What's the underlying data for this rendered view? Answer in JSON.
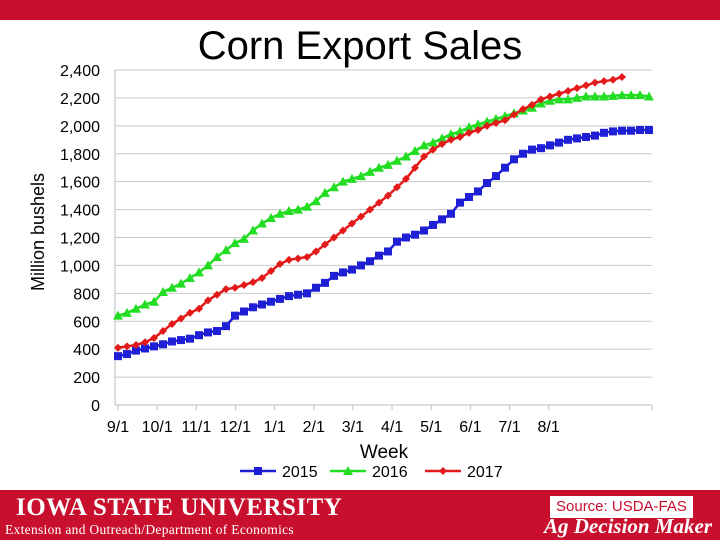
{
  "slide": {
    "title": "Corn Export Sales",
    "footer": {
      "university": "IOWA STATE UNIVERSITY",
      "department": "Extension and Outreach/Department of Economics",
      "source": "Source: USDA-FAS",
      "brand": "Ag Decision Maker"
    }
  },
  "colors": {
    "series_2015": "#1f1fd6",
    "series_2016": "#22dd22",
    "series_2017": "#e31a1a",
    "footer": "#c8102e"
  },
  "chart_data": {
    "type": "line",
    "title": "Corn Export Sales",
    "xlabel": "Week",
    "ylabel": "Million bushels",
    "ylim": [
      0,
      2400
    ],
    "yticks": [
      "0",
      "200",
      "400",
      "600",
      "800",
      "1,000",
      "1,200",
      "1,400",
      "1,600",
      "1,800",
      "2,000",
      "2,200",
      "2,400"
    ],
    "xticks": [
      "9/1",
      "10/1",
      "11/1",
      "12/1",
      "1/1",
      "2/1",
      "3/1",
      "4/1",
      "5/1",
      "6/1",
      "7/1",
      "8/1"
    ],
    "grid": true,
    "legend": "bottom",
    "series": [
      {
        "name": "2015",
        "marker": "square",
        "values": [
          350,
          365,
          390,
          405,
          420,
          435,
          455,
          465,
          475,
          500,
          520,
          530,
          565,
          640,
          670,
          700,
          720,
          740,
          760,
          780,
          790,
          800,
          840,
          875,
          925,
          950,
          970,
          1000,
          1030,
          1070,
          1100,
          1170,
          1200,
          1220,
          1250,
          1290,
          1330,
          1370,
          1450,
          1490,
          1530,
          1590,
          1640,
          1700,
          1760,
          1800,
          1830,
          1840,
          1860,
          1880,
          1900,
          1910,
          1920,
          1930,
          1950,
          1960,
          1965,
          1965,
          1970,
          1970
        ]
      },
      {
        "name": "2016",
        "marker": "triangle",
        "values": [
          640,
          660,
          690,
          720,
          740,
          810,
          840,
          870,
          910,
          950,
          1000,
          1060,
          1110,
          1160,
          1190,
          1250,
          1300,
          1340,
          1370,
          1390,
          1400,
          1420,
          1460,
          1520,
          1560,
          1600,
          1620,
          1640,
          1670,
          1700,
          1720,
          1750,
          1780,
          1820,
          1860,
          1880,
          1910,
          1940,
          1960,
          1990,
          2010,
          2030,
          2050,
          2070,
          2090,
          2110,
          2130,
          2160,
          2180,
          2190,
          2190,
          2200,
          2210,
          2210,
          2210,
          2215,
          2220,
          2220,
          2220,
          2210
        ]
      },
      {
        "name": "2017",
        "marker": "diamond",
        "values": [
          410,
          420,
          430,
          450,
          480,
          530,
          580,
          620,
          660,
          690,
          750,
          790,
          830,
          840,
          860,
          880,
          910,
          960,
          1010,
          1040,
          1050,
          1060,
          1100,
          1150,
          1200,
          1250,
          1300,
          1350,
          1400,
          1450,
          1500,
          1560,
          1620,
          1700,
          1780,
          1830,
          1870,
          1900,
          1920,
          1950,
          1970,
          2000,
          2020,
          2040,
          2080,
          2120,
          2150,
          2190,
          2210,
          2230,
          2250,
          2270,
          2290,
          2310,
          2320,
          2330,
          2350
        ]
      }
    ]
  }
}
